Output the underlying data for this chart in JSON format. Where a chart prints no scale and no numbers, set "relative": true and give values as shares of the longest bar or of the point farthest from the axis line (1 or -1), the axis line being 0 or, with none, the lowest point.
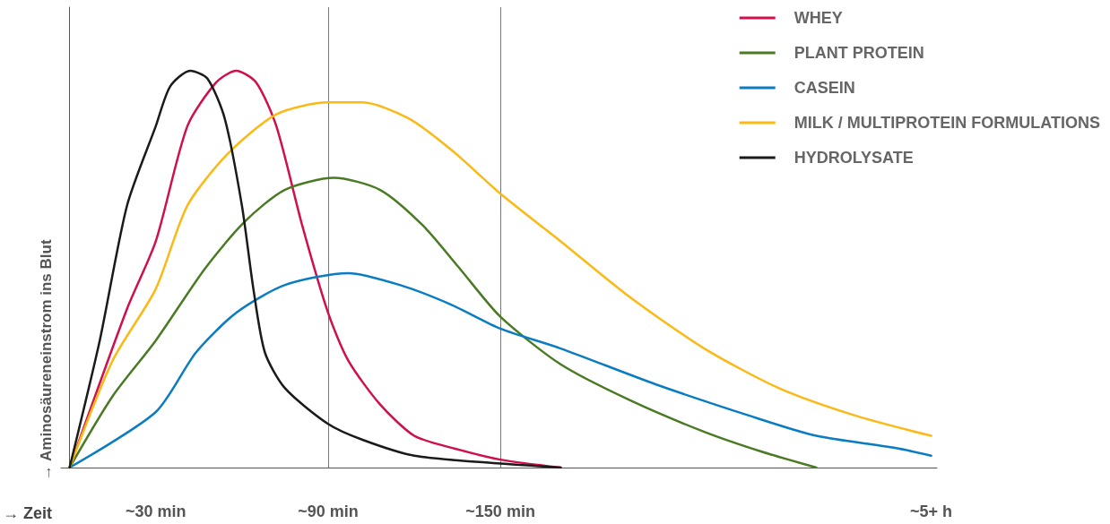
{
  "chart_data": {
    "type": "line",
    "relative": true,
    "xlabel": "→ Zeit",
    "ylabel": "→ Aminosäureneinstrom ins Blut",
    "xlim": [
      -3,
      302
    ],
    "xticks": [
      {
        "value": 30,
        "label": "~30 min"
      },
      {
        "value": 90,
        "label": "~90 min"
      },
      {
        "value": 150,
        "label": "~150 min"
      },
      {
        "value": 300,
        "label": "~5+ h"
      }
    ],
    "grid": "x",
    "legend": "top right",
    "marker": "none",
    "line_style": "solid",
    "series": [
      {
        "name": "WHEY",
        "color": "#d0104c",
        "x": [
          0,
          20,
          30,
          41,
          51,
          58,
          65,
          72,
          81,
          90,
          97,
          108,
          120,
          133,
          150,
          171
        ],
        "values": [
          0,
          0.4,
          0.57,
          0.86,
          0.97,
          1,
          0.97,
          0.86,
          0.61,
          0.39,
          0.27,
          0.16,
          0.08,
          0.05,
          0.02,
          0
        ]
      },
      {
        "name": "PLANT PROTEIN",
        "color": "#4a7a23",
        "x": [
          0,
          15,
          30,
          47,
          61,
          75,
          92,
          108,
          123,
          136,
          150,
          171,
          195,
          221,
          241,
          260
        ],
        "values": [
          0,
          0.18,
          0.32,
          0.5,
          0.62,
          0.7,
          0.73,
          0.7,
          0.61,
          0.5,
          0.38,
          0.26,
          0.17,
          0.09,
          0.04,
          0
        ]
      },
      {
        "name": "CASEIN",
        "color": "#0a7cc1",
        "x": [
          0,
          30,
          44,
          58,
          75,
          97,
          115,
          133,
          150,
          171,
          204,
          237,
          260,
          287,
          300
        ],
        "values": [
          0,
          0.14,
          0.29,
          0.39,
          0.46,
          0.49,
          0.46,
          0.41,
          0.35,
          0.3,
          0.21,
          0.13,
          0.08,
          0.05,
          0.03
        ]
      },
      {
        "name": "MILK / MULTIPROTEIN FORMULATIONS",
        "color": "#fbb916",
        "x": [
          0,
          15,
          30,
          41,
          55,
          72,
          90,
          102,
          118,
          133,
          150,
          171,
          195,
          221,
          247,
          274,
          300
        ],
        "values": [
          0,
          0.27,
          0.45,
          0.66,
          0.79,
          0.89,
          0.92,
          0.92,
          0.88,
          0.8,
          0.69,
          0.57,
          0.43,
          0.3,
          0.2,
          0.13,
          0.08
        ]
      },
      {
        "name": "HYDROLYSATE",
        "color": "#1a1a1a",
        "x": [
          0,
          10.5,
          20,
          30,
          35,
          42,
          48,
          54,
          60,
          64,
          68,
          75,
          90,
          102,
          120,
          150,
          171
        ],
        "values": [
          0,
          0.32,
          0.66,
          0.86,
          0.96,
          1,
          0.98,
          0.88,
          0.66,
          0.45,
          0.29,
          0.2,
          0.11,
          0.07,
          0.03,
          0.01,
          0
        ]
      }
    ]
  }
}
